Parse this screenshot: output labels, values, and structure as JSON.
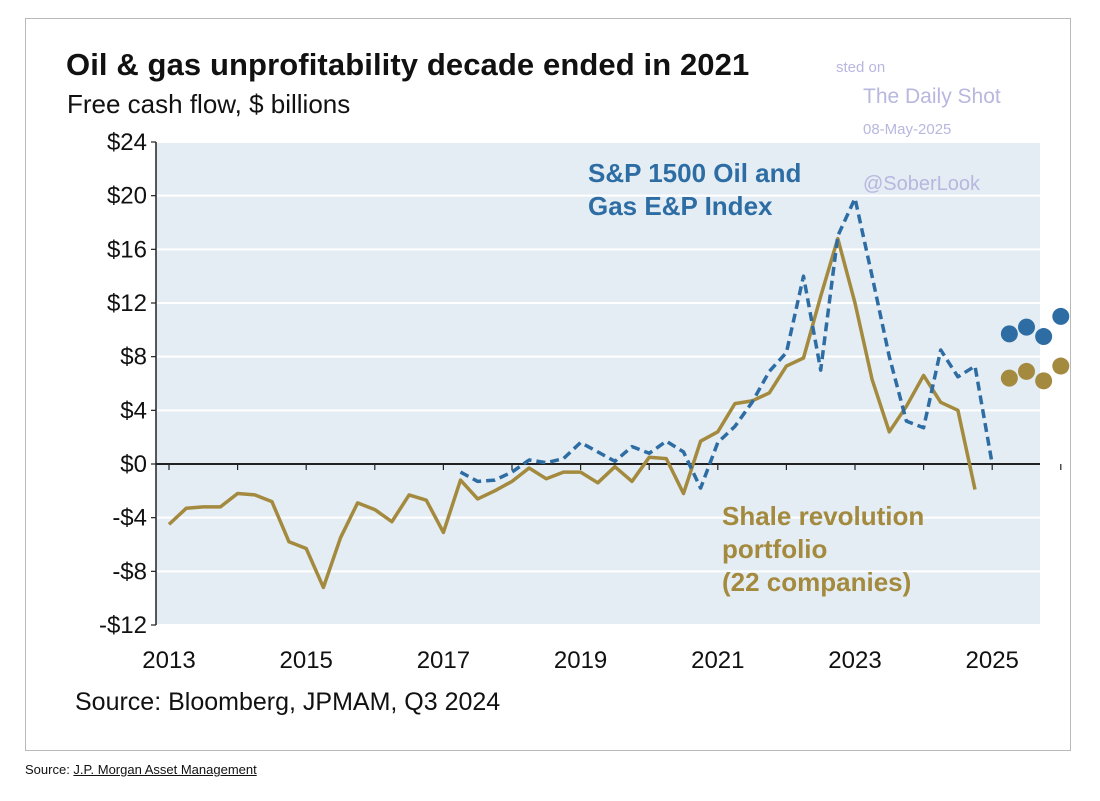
{
  "chart_data": {
    "type": "line",
    "title": "Oil & gas unprofitability decade ended in 2021",
    "subtitle": "Free cash flow, $ billions",
    "source": "Source: Bloomberg, JPMAM, Q3 2024",
    "ylim": [
      -12,
      24
    ],
    "xlim": [
      2013,
      2026.3
    ],
    "yticks": [
      24,
      20,
      16,
      12,
      8,
      4,
      0,
      -4,
      -8,
      -12
    ],
    "ytick_labels": [
      "$24",
      "$20",
      "$16",
      "$12",
      "$8",
      "$4",
      "$0",
      "-$4",
      "-$8",
      "-$12"
    ],
    "xticks": [
      2013,
      2015,
      2017,
      2019,
      2021,
      2023,
      2025
    ],
    "xtick_labels": [
      "2013",
      "2015",
      "2017",
      "2019",
      "2021",
      "2023",
      "2025"
    ],
    "grid": true,
    "series": [
      {
        "label_lines": [
          "S&P 1500 Oil and",
          "Gas E&P Index"
        ],
        "color": "#2e6da4",
        "style": "dashed",
        "points": [
          [
            2017.25,
            -0.6
          ],
          [
            2017.5,
            -1.3
          ],
          [
            2017.75,
            -1.2
          ],
          [
            2018.0,
            -0.6
          ],
          [
            2018.25,
            0.3
          ],
          [
            2018.5,
            0.1
          ],
          [
            2018.75,
            0.4
          ],
          [
            2019.0,
            1.6
          ],
          [
            2019.25,
            0.9
          ],
          [
            2019.5,
            0.2
          ],
          [
            2019.75,
            1.3
          ],
          [
            2020.0,
            0.8
          ],
          [
            2020.25,
            1.7
          ],
          [
            2020.5,
            0.9
          ],
          [
            2020.75,
            -1.8
          ],
          [
            2021.0,
            1.6
          ],
          [
            2021.25,
            2.8
          ],
          [
            2021.5,
            4.6
          ],
          [
            2021.75,
            6.9
          ],
          [
            2022.0,
            8.3
          ],
          [
            2022.25,
            14.0
          ],
          [
            2022.5,
            7.0
          ],
          [
            2022.75,
            17.0
          ],
          [
            2023.0,
            19.8
          ],
          [
            2023.25,
            14.0
          ],
          [
            2023.5,
            8.0
          ],
          [
            2023.75,
            3.2
          ],
          [
            2024.0,
            2.7
          ],
          [
            2024.25,
            8.5
          ],
          [
            2024.5,
            6.5
          ],
          [
            2024.75,
            7.3
          ],
          [
            2025.0,
            0.0
          ]
        ],
        "projections": [
          [
            2025.25,
            9.7
          ],
          [
            2025.5,
            10.2
          ],
          [
            2025.75,
            9.5
          ],
          [
            2026.0,
            11.0
          ]
        ]
      },
      {
        "label_lines": [
          "Shale revolution",
          "portfolio",
          "(22 companies)"
        ],
        "color": "#a38a3e",
        "style": "solid",
        "points": [
          [
            2013.0,
            -4.5
          ],
          [
            2013.25,
            -3.3
          ],
          [
            2013.5,
            -3.2
          ],
          [
            2013.75,
            -3.2
          ],
          [
            2014.0,
            -2.2
          ],
          [
            2014.25,
            -2.3
          ],
          [
            2014.5,
            -2.8
          ],
          [
            2014.75,
            -5.8
          ],
          [
            2015.0,
            -6.3
          ],
          [
            2015.25,
            -9.2
          ],
          [
            2015.5,
            -5.5
          ],
          [
            2015.75,
            -2.9
          ],
          [
            2016.0,
            -3.4
          ],
          [
            2016.25,
            -4.3
          ],
          [
            2016.5,
            -2.3
          ],
          [
            2016.75,
            -2.7
          ],
          [
            2017.0,
            -5.1
          ],
          [
            2017.25,
            -1.2
          ],
          [
            2017.5,
            -2.6
          ],
          [
            2017.75,
            -2.0
          ],
          [
            2018.0,
            -1.3
          ],
          [
            2018.25,
            -0.3
          ],
          [
            2018.5,
            -1.1
          ],
          [
            2018.75,
            -0.6
          ],
          [
            2019.0,
            -0.6
          ],
          [
            2019.25,
            -1.4
          ],
          [
            2019.5,
            -0.2
          ],
          [
            2019.75,
            -1.3
          ],
          [
            2020.0,
            0.5
          ],
          [
            2020.25,
            0.4
          ],
          [
            2020.5,
            -2.2
          ],
          [
            2020.75,
            1.7
          ],
          [
            2021.0,
            2.4
          ],
          [
            2021.25,
            4.5
          ],
          [
            2021.5,
            4.7
          ],
          [
            2021.75,
            5.3
          ],
          [
            2022.0,
            7.3
          ],
          [
            2022.25,
            7.9
          ],
          [
            2022.5,
            12.5
          ],
          [
            2022.75,
            16.8
          ],
          [
            2023.0,
            12.0
          ],
          [
            2023.25,
            6.3
          ],
          [
            2023.5,
            2.4
          ],
          [
            2023.75,
            4.3
          ],
          [
            2024.0,
            6.6
          ],
          [
            2024.25,
            4.6
          ],
          [
            2024.5,
            4.0
          ],
          [
            2024.75,
            -1.9
          ]
        ],
        "projections": [
          [
            2025.25,
            6.4
          ],
          [
            2025.5,
            6.9
          ],
          [
            2025.75,
            6.2
          ],
          [
            2026.0,
            7.3
          ]
        ]
      }
    ]
  },
  "watermark": {
    "line1": "sted on",
    "line2": "The Daily Shot",
    "line3": "08-May-2025",
    "line4": "@SoberLook"
  },
  "footer": {
    "prefix": "Source: ",
    "link": "J.P. Morgan Asset Management"
  },
  "colors": {
    "plot_bg": "#e4edf3",
    "grid": "#ffffff",
    "axis": "#222222",
    "sp1500": "#2e6da4",
    "shale": "#a38a3e"
  }
}
